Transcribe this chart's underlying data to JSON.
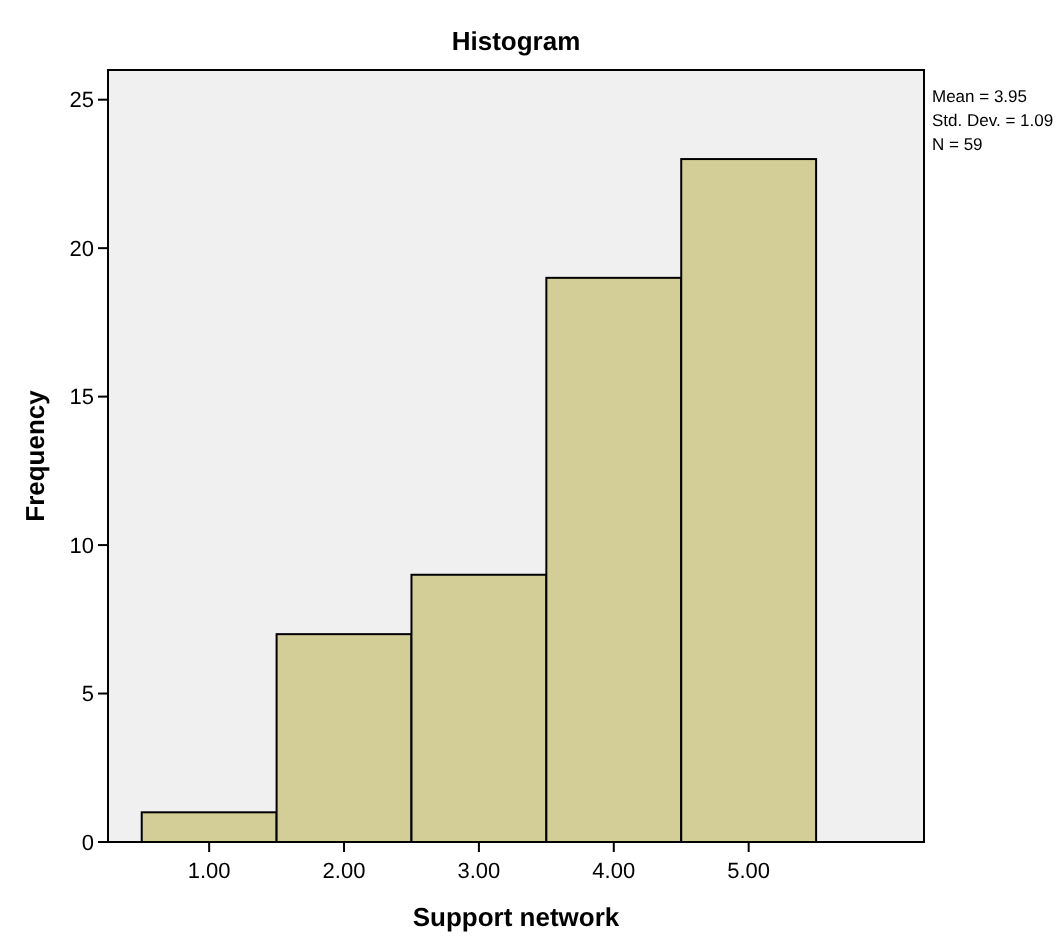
{
  "chart_data": {
    "type": "histogram",
    "title": "Histogram",
    "xlabel": "Support network",
    "ylabel": "Frequency",
    "bins": [
      0.5,
      1.5,
      2.5,
      3.5,
      4.5,
      5.5
    ],
    "values": [
      1,
      7,
      9,
      19,
      23
    ],
    "color": "#d3ce97",
    "xlim": [
      0.25,
      6.3
    ],
    "xticks": [
      {
        "value": 1,
        "label": "1.00"
      },
      {
        "value": 2,
        "label": "2.00"
      },
      {
        "value": 3,
        "label": "3.00"
      },
      {
        "value": 4,
        "label": "4.00"
      },
      {
        "value": 5,
        "label": "5.00"
      }
    ],
    "ylim": [
      0,
      26
    ],
    "yticks": [
      0,
      5,
      10,
      15,
      20,
      25
    ],
    "grid": false,
    "annotations": [
      "Mean = 3.95",
      "Std. Dev. = 1.09",
      "N = 59"
    ]
  }
}
